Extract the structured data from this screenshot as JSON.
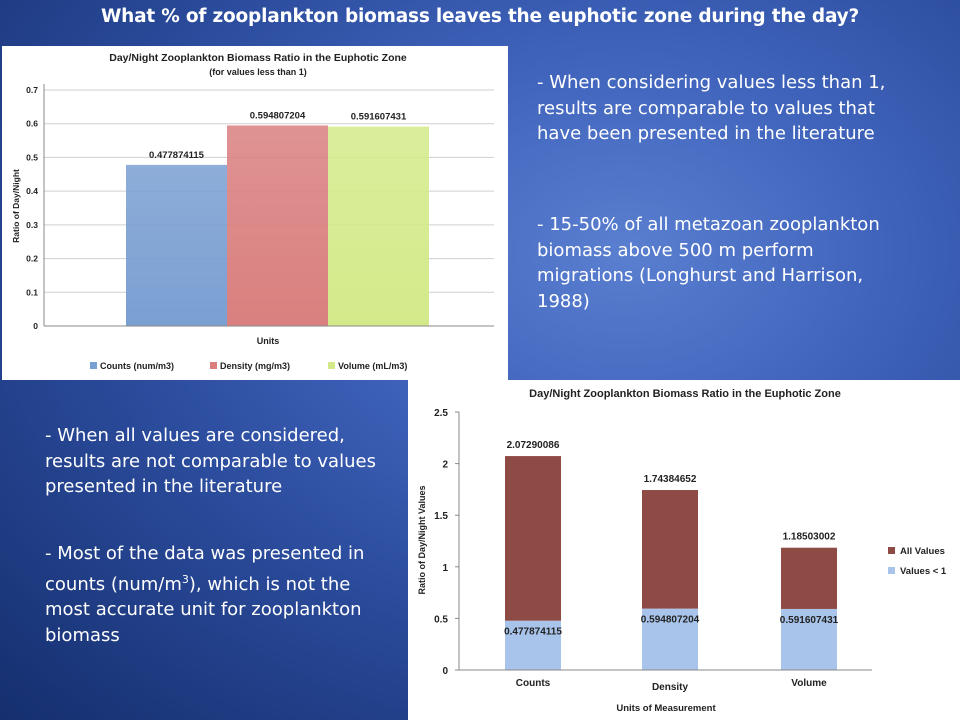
{
  "slide": {
    "title": "What % of zooplankton biomass leaves the euphotic zone during the day?",
    "text_top_right": [
      "- When considering values less than 1, results are comparable to values that have been presented in the literature",
      "- 15-50% of all metazoan zooplankton biomass above 500 m perform migrations (Longhurst and Harrison, 1988)"
    ],
    "text_bottom_left_1": "- When all values are considered, results are not comparable to values presented in the literature",
    "text_bottom_left_2": {
      "part1": "- Most of the data was presented in counts (num/m",
      "sup": "3",
      "part2": "), which is not the most accurate unit for zooplankton biomass"
    }
  },
  "colors": {
    "counts_bar": "#7a9fd2",
    "density_bar": "#d9807f",
    "volume_bar": "#d4ea8a",
    "all_values": "#8e4b45",
    "values_lt1": "#a8c4ea"
  },
  "chart_data": [
    {
      "type": "bar",
      "title": "Day/Night Zooplankton Biomass Ratio in the Euphotic Zone",
      "subtitle": "(for values less than 1)",
      "xlabel": "Units",
      "ylabel": "Ratio of Day/Night",
      "ylim": [
        0,
        0.7
      ],
      "yticks": [
        "0",
        "0.1",
        "0.2",
        "0.3",
        "0.4",
        "0.5",
        "0.6",
        "0.7"
      ],
      "grid": true,
      "legend_position": "bottom",
      "series": [
        {
          "name": "Counts (num/m3)",
          "values": [
            0.477874115
          ],
          "label": "0.477874115"
        },
        {
          "name": "Density (mg/m3)",
          "values": [
            0.594807204
          ],
          "label": "0.594807204"
        },
        {
          "name": "Volume (mL/m3)",
          "values": [
            0.591607431
          ],
          "label": "0.591607431"
        }
      ]
    },
    {
      "type": "bar",
      "stacked": true,
      "title": "Day/Night Zooplankton Biomass Ratio in the Euphotic Zone",
      "xlabel": "Units of Measurement",
      "ylabel": "Ratio of Day/Night Values",
      "categories": [
        "Counts",
        "Density",
        "Volume"
      ],
      "ylim": [
        0,
        2.5
      ],
      "yticks": [
        "0",
        "0.5",
        "1",
        "1.5",
        "2",
        "2.5"
      ],
      "grid": false,
      "legend_position": "right",
      "legend": [
        "All Values",
        "Values < 1"
      ],
      "values_lt1": [
        0.477874115,
        0.594807204,
        0.591607431
      ],
      "labels_lt1": [
        "0.477874115",
        "0.594807204",
        "0.591607431"
      ],
      "all_values": [
        2.07290086,
        1.74384652,
        1.18503002
      ],
      "labels_all": [
        "2.07290086",
        "1.74384652",
        "1.18503002"
      ]
    }
  ]
}
